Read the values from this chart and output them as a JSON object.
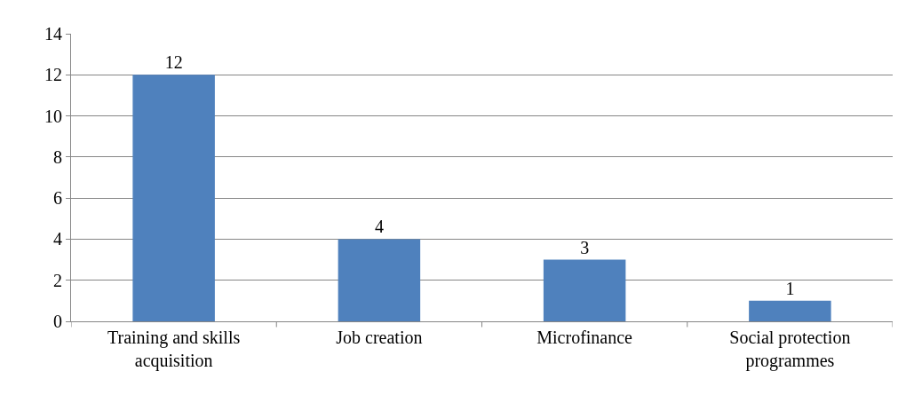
{
  "chart_data": {
    "type": "bar",
    "categories": [
      "Training and skills acquisition",
      "Job creation",
      "Microfinance",
      "Social protection programmes"
    ],
    "values": [
      12,
      4,
      3,
      1
    ],
    "color": "#4f81bd",
    "ylim": [
      0,
      14
    ],
    "yticks": [
      0,
      2,
      4,
      6,
      8,
      10,
      12,
      14
    ],
    "grid": "y",
    "data_labels": true,
    "legend": false
  }
}
